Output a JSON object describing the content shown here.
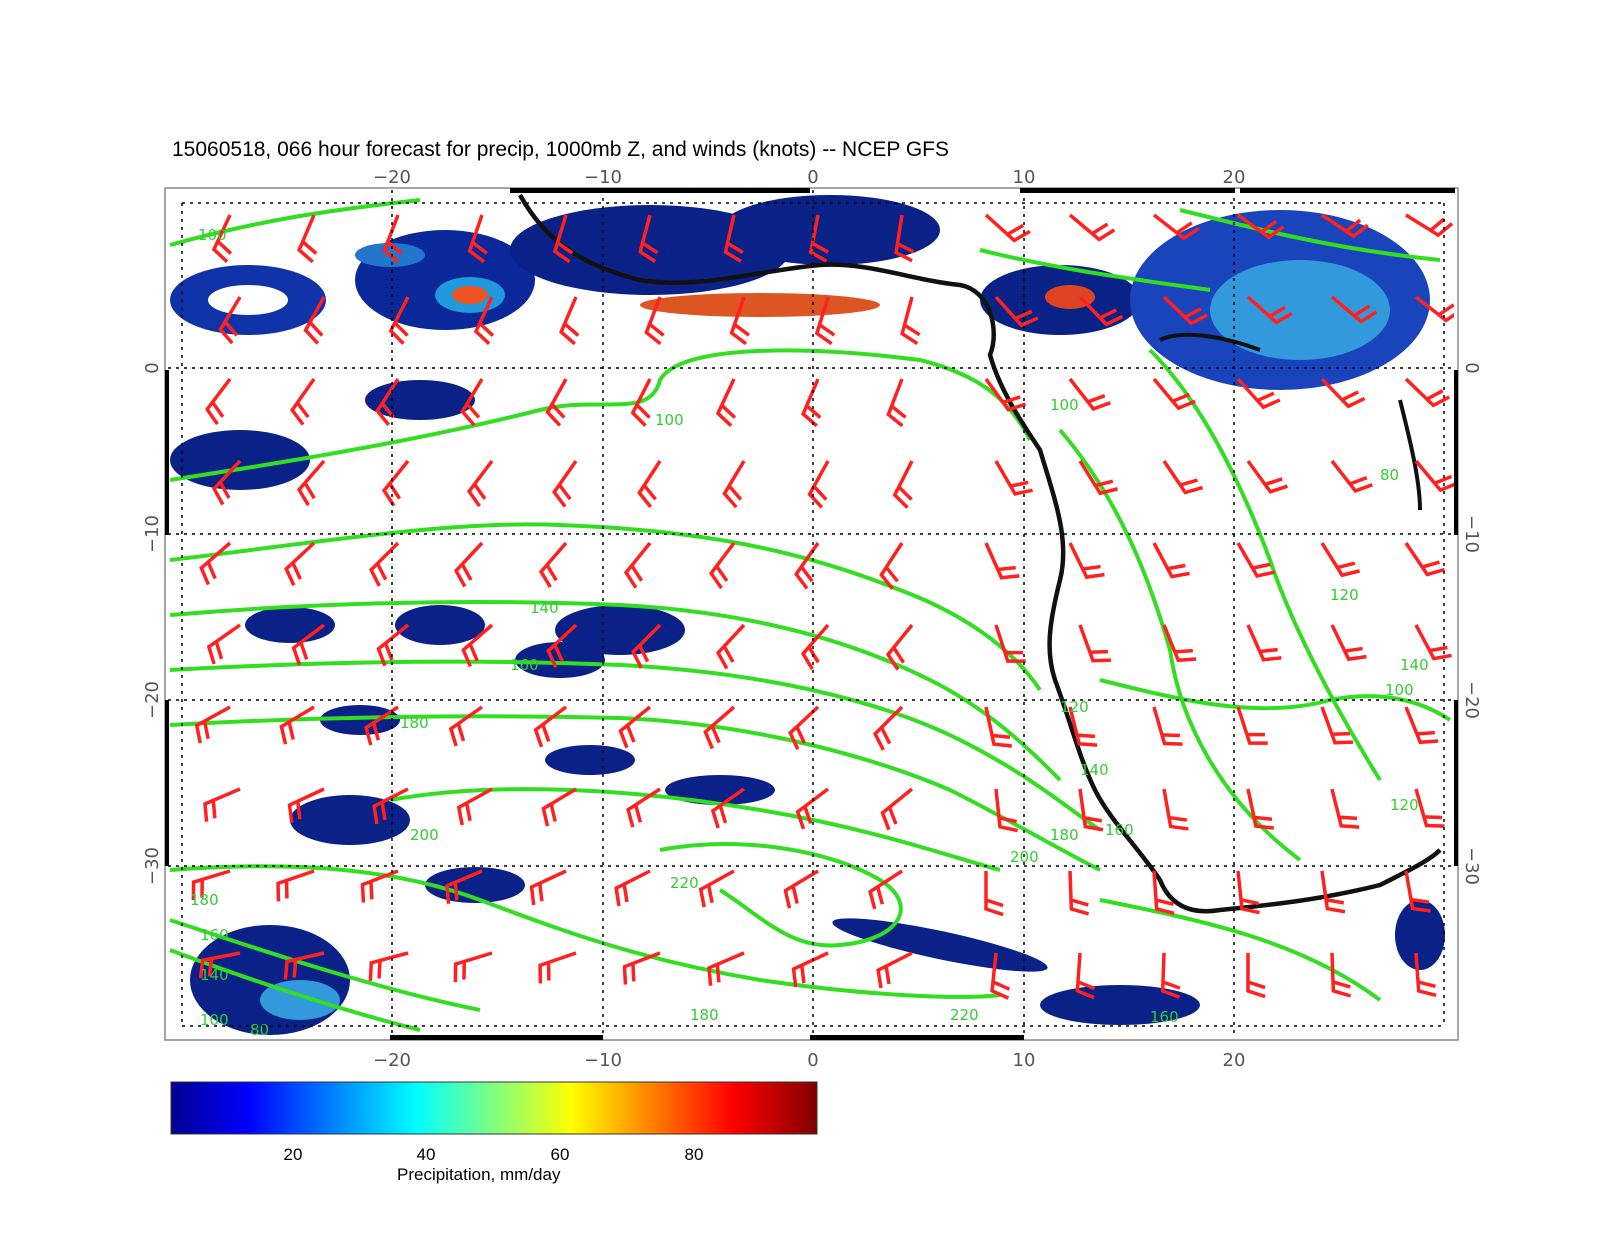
{
  "title": "15060518, 066 hour forecast for precip, 1000mb Z, and winds (knots) -- NCEP GFS",
  "map": {
    "lon_ticks": [
      "−20",
      "−10",
      "0",
      "10",
      "20"
    ],
    "lat_ticks": [
      "0",
      "−10",
      "−20",
      "−30"
    ],
    "lon_range": [
      -30,
      31
    ],
    "lat_range": [
      -40,
      11
    ],
    "grid": "dotted",
    "coastline": "Africa (west coast)",
    "contour_labels": [
      "100",
      "100",
      "100",
      "140",
      "160",
      "180",
      "200",
      "220",
      "180",
      "160",
      "140",
      "120",
      "100",
      "80",
      "180",
      "200",
      "180",
      "160",
      "140",
      "120",
      "100",
      "80",
      "160",
      "220",
      "120",
      "140"
    ],
    "colors": {
      "wind_barbs": "#ff2020",
      "contours": "#33dd22",
      "coastline": "#000000"
    }
  },
  "colorbar": {
    "ticks": [
      "20",
      "40",
      "60",
      "80"
    ],
    "label": "Precipitation, mm/day",
    "range": [
      0,
      100
    ]
  }
}
